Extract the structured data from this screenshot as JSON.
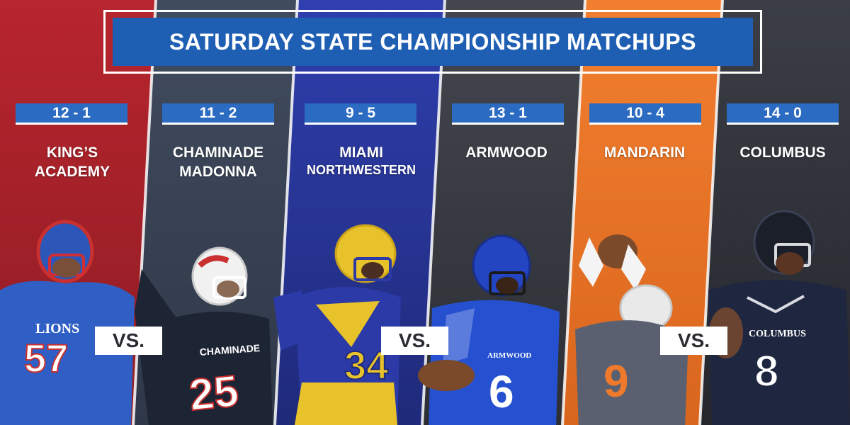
{
  "title": "SATURDAY STATE CHAMPIONSHIP MATCHUPS",
  "vs_label": "VS.",
  "colors": {
    "title_bar": "#1f5fb3",
    "record_badge": "#2b6bc2",
    "kings_panel": "#b3262f",
    "chaminade_panel": "#3a4659",
    "miami_panel": "#2c3a9e",
    "armwood_panel": "#3b3e45",
    "mandarin_panel": "#ef7a2c",
    "columbus_panel": "#2e3138"
  },
  "teams": [
    {
      "record": "12 - 1",
      "name_line1": "KING’S",
      "name_line2": "ACADEMY",
      "jersey_text": "LIONS",
      "jersey_number": "57"
    },
    {
      "record": "11 - 2",
      "name_line1": "CHAMINADE",
      "name_line2": "MADONNA",
      "jersey_text": "CHAMINADE",
      "jersey_number": "25"
    },
    {
      "record": "9 - 5",
      "name_line1": "MIAMI",
      "name_line2": "NORTHWESTERN",
      "jersey_text": "",
      "jersey_number": "34"
    },
    {
      "record": "13 - 1",
      "name_line1": "ARMWOOD",
      "name_line2": "",
      "jersey_text": "ARMWOOD",
      "jersey_number": "6"
    },
    {
      "record": "10 - 4",
      "name_line1": "MANDARIN",
      "name_line2": "",
      "jersey_text": "",
      "jersey_number": "9"
    },
    {
      "record": "14 - 0",
      "name_line1": "COLUMBUS",
      "name_line2": "",
      "jersey_text": "COLUMBUS",
      "jersey_number": "8"
    }
  ]
}
